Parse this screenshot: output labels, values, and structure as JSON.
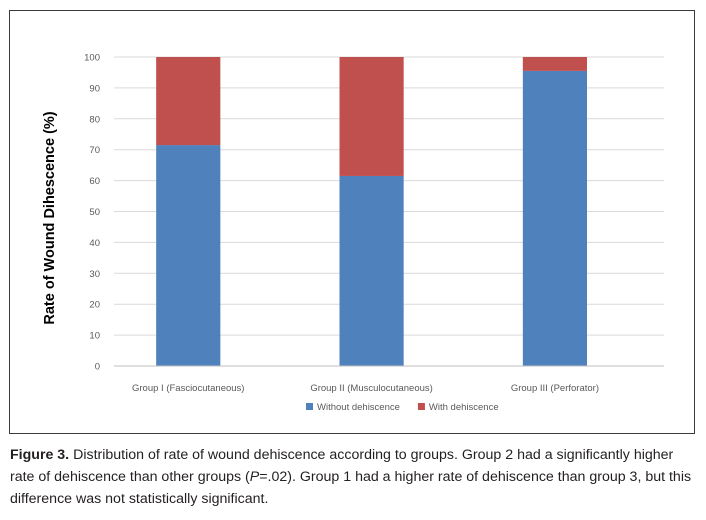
{
  "chart_data": {
    "type": "bar",
    "stacked": true,
    "categories": [
      "Group I (Fasciocutaneous)",
      "Group II (Musculocutaneous)",
      "Group III (Perforator)"
    ],
    "series": [
      {
        "name": "Without dehiscence",
        "color": "#4f81bd",
        "values": [
          71.5,
          61.5,
          95.5
        ]
      },
      {
        "name": "With dehiscence",
        "color": "#c0504d",
        "values": [
          28.5,
          38.5,
          4.5
        ]
      }
    ],
    "ylabel": "Rate of Wound Dihescence (%)",
    "xlabel": "",
    "ylim": [
      0,
      100
    ],
    "yticks": [
      0,
      10,
      20,
      30,
      40,
      50,
      60,
      70,
      80,
      90,
      100
    ],
    "grid": true,
    "legend_position": "bottom"
  },
  "caption": {
    "label": "Figure 3.",
    "text_before_p": " Distribution of rate of wound dehiscence according to groups. Group 2 had a significantly higher rate of dehiscence than other groups (",
    "p_symbol": "P",
    "p_value": "=.02",
    "text_after_p": "). Group 1 had a higher rate of dehiscence than group 3, but this difference was not statistically significant."
  }
}
